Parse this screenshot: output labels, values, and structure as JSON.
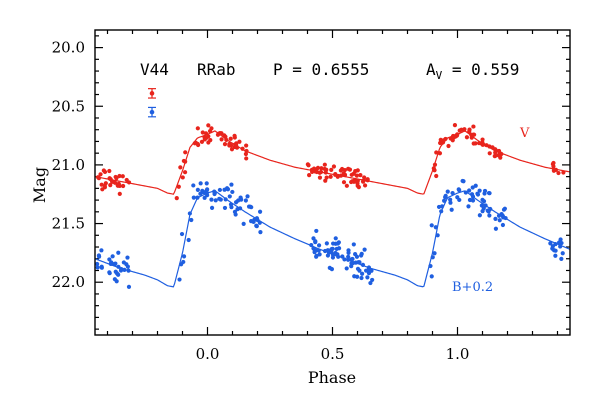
{
  "header": {
    "star": "V44",
    "type": "RRab",
    "period_label": "P = 0.6555",
    "amp_main": "A",
    "amp_sub": "V",
    "amp_value": " = 0.559"
  },
  "colors": {
    "V": "#e8241c",
    "B": "#1f5fe0"
  },
  "chart_data": {
    "type": "scatter",
    "xlabel": "Phase",
    "ylabel": "Mag",
    "xlim": [
      -0.45,
      1.45
    ],
    "ylim": [
      22.45,
      19.85
    ],
    "y_inverted": true,
    "xticks": [
      0.0,
      0.5,
      1.0
    ],
    "xtick_labels": [
      "0.0",
      "0.5",
      "1.0"
    ],
    "yticks": [
      20.0,
      20.5,
      21.0,
      21.5,
      22.0
    ],
    "ytick_labels": [
      "20.0",
      "20.5",
      "21.0",
      "21.5",
      "22.0"
    ],
    "annotations": [
      {
        "text": "V",
        "series": "V"
      },
      {
        "text": "B+0.2",
        "series": "B+0.2"
      }
    ],
    "series": [
      {
        "name": "V",
        "color": "#e8241c",
        "errorbar": {
          "mag": 20.39,
          "err": 0.04
        },
        "template": [
          [
            0.0,
            20.74
          ],
          [
            0.03,
            20.71
          ],
          [
            0.08,
            20.79
          ],
          [
            0.15,
            20.88
          ],
          [
            0.25,
            20.96
          ],
          [
            0.35,
            21.02
          ],
          [
            0.45,
            21.06
          ],
          [
            0.55,
            21.1
          ],
          [
            0.65,
            21.14
          ],
          [
            0.75,
            21.18
          ],
          [
            0.8,
            21.2
          ],
          [
            0.84,
            21.24
          ],
          [
            0.865,
            21.25
          ],
          [
            0.9,
            21.05
          ],
          [
            0.93,
            20.85
          ],
          [
            0.96,
            20.77
          ],
          [
            1.0,
            20.74
          ]
        ],
        "clusters": [
          {
            "x": [
              -0.45,
              -0.31
            ],
            "y": 21.15,
            "spread": 0.08,
            "n": 30
          },
          {
            "x": [
              -0.13,
              -0.07
            ],
            "y": 21.1,
            "spread": 0.12,
            "n": 8
          },
          {
            "x": [
              -0.06,
              0.16
            ],
            "y": 20.85,
            "spread": 0.06,
            "n": 45
          },
          {
            "x": [
              0.4,
              0.65
            ],
            "y": 21.13,
            "spread": 0.06,
            "n": 60
          },
          {
            "x": [
              0.9,
              0.93
            ],
            "y": 21.05,
            "spread": 0.1,
            "n": 6
          },
          {
            "x": [
              0.93,
              1.18
            ],
            "y": 20.84,
            "spread": 0.06,
            "n": 50
          },
          {
            "x": [
              1.37,
              1.45
            ],
            "y": 21.13,
            "spread": 0.06,
            "n": 12
          }
        ]
      },
      {
        "name": "B+0.2",
        "color": "#1f5fe0",
        "errorbar": {
          "mag": 20.55,
          "err": 0.04
        },
        "template": [
          [
            0.0,
            21.24
          ],
          [
            0.03,
            21.22
          ],
          [
            0.08,
            21.3
          ],
          [
            0.15,
            21.4
          ],
          [
            0.25,
            21.53
          ],
          [
            0.35,
            21.63
          ],
          [
            0.45,
            21.72
          ],
          [
            0.55,
            21.8
          ],
          [
            0.65,
            21.88
          ],
          [
            0.75,
            21.94
          ],
          [
            0.8,
            21.98
          ],
          [
            0.84,
            22.03
          ],
          [
            0.865,
            22.04
          ],
          [
            0.9,
            21.75
          ],
          [
            0.93,
            21.42
          ],
          [
            0.96,
            21.28
          ],
          [
            1.0,
            21.24
          ]
        ],
        "clusters": [
          {
            "x": [
              -0.45,
              -0.31
            ],
            "y": 21.92,
            "spread": 0.12,
            "n": 38
          },
          {
            "x": [
              -0.12,
              -0.05
            ],
            "y": 21.6,
            "spread": 0.2,
            "n": 10
          },
          {
            "x": [
              -0.05,
              0.22
            ],
            "y": 21.35,
            "spread": 0.1,
            "n": 55
          },
          {
            "x": [
              0.4,
              0.66
            ],
            "y": 21.86,
            "spread": 0.11,
            "n": 75
          },
          {
            "x": [
              0.89,
              0.93
            ],
            "y": 21.65,
            "spread": 0.2,
            "n": 8
          },
          {
            "x": [
              0.93,
              1.2
            ],
            "y": 21.36,
            "spread": 0.1,
            "n": 55
          },
          {
            "x": [
              1.37,
              1.45
            ],
            "y": 21.8,
            "spread": 0.08,
            "n": 14
          }
        ]
      }
    ]
  }
}
